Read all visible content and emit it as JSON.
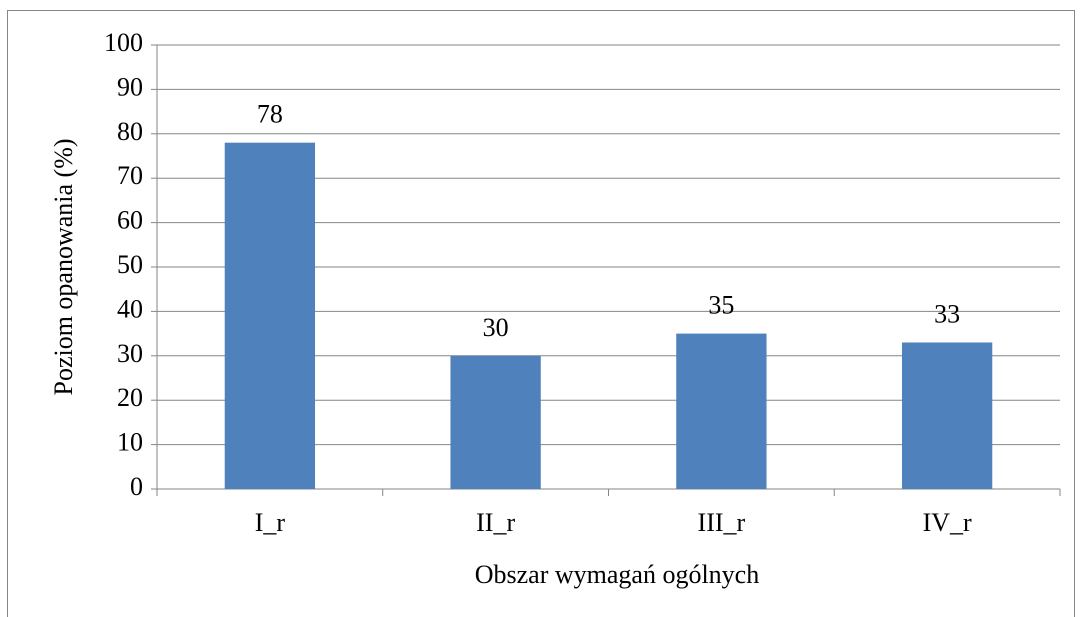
{
  "chart_data": {
    "type": "bar",
    "x_label": "Obszar wymagań ogólnych",
    "y_label": "Poziom opanowania (%)",
    "categories": [
      "I_r",
      "II_r",
      "III_r",
      "IV_r"
    ],
    "values": [
      78,
      30,
      35,
      33
    ],
    "color": "#4f81bd",
    "ylim": [
      0,
      100
    ],
    "yticks": [
      0,
      10,
      20,
      30,
      40,
      50,
      60,
      70,
      80,
      90,
      100
    ],
    "grid": true
  }
}
